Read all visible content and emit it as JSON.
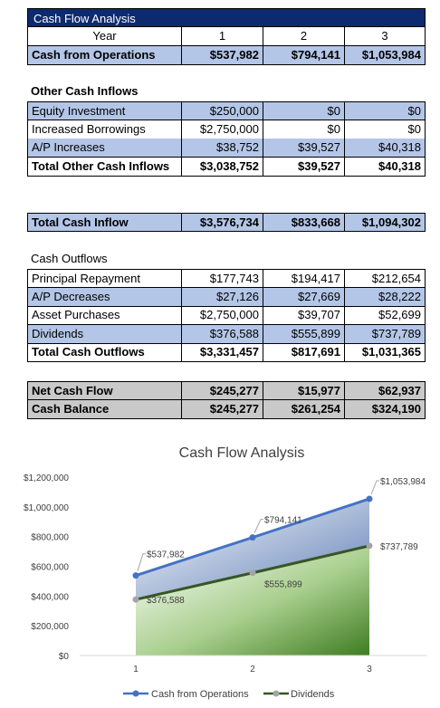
{
  "sheet_title": "Cash Flow Analysis",
  "header": {
    "label": "Year",
    "years": [
      "1",
      "2",
      "3"
    ]
  },
  "operations": {
    "label": "Cash from Operations",
    "values": [
      "$537,982",
      "$794,141",
      "$1,053,984"
    ]
  },
  "other_inflows": {
    "heading": "Other Cash Inflows",
    "rows": [
      {
        "label": "Equity Investment",
        "values": [
          "$250,000",
          "$0",
          "$0"
        ]
      },
      {
        "label": "Increased Borrowings",
        "values": [
          "$2,750,000",
          "$0",
          "$0"
        ]
      },
      {
        "label": "A/P Increases",
        "values": [
          "$38,752",
          "$39,527",
          "$40,318"
        ]
      }
    ],
    "total": {
      "label": "Total Other Cash Inflows",
      "values": [
        "$3,038,752",
        "$39,527",
        "$40,318"
      ]
    }
  },
  "total_inflow": {
    "label": "Total Cash Inflow",
    "values": [
      "$3,576,734",
      "$833,668",
      "$1,094,302"
    ]
  },
  "outflows": {
    "heading": "Cash Outflows",
    "rows": [
      {
        "label": "Principal Repayment",
        "values": [
          "$177,743",
          "$194,417",
          "$212,654"
        ]
      },
      {
        "label": "A/P Decreases",
        "values": [
          "$27,126",
          "$27,669",
          "$28,222"
        ]
      },
      {
        "label": "Asset Purchases",
        "values": [
          "$2,750,000",
          "$39,707",
          "$52,699"
        ]
      },
      {
        "label": "Dividends",
        "values": [
          "$376,588",
          "$555,899",
          "$737,789"
        ]
      }
    ],
    "total": {
      "label": "Total Cash Outflows",
      "values": [
        "$3,331,457",
        "$817,691",
        "$1,031,365"
      ]
    }
  },
  "net_cash_flow": {
    "label": "Net Cash Flow",
    "values": [
      "$245,277",
      "$15,977",
      "$62,937"
    ]
  },
  "cash_balance": {
    "label": "Cash Balance",
    "values": [
      "$245,277",
      "$261,254",
      "$324,190"
    ]
  },
  "colors": {
    "title_bar": "#0e2a6e",
    "row_blue": "#b4c6e7",
    "row_gray": "#c9c9c9",
    "series_ops": "#4472c4",
    "series_div": "#375623",
    "marker_div": "#a5a5a5"
  },
  "chart_data": {
    "type": "area",
    "title": "Cash Flow Analysis",
    "categories": [
      "1",
      "2",
      "3"
    ],
    "ylim": [
      0,
      1200000
    ],
    "y_ticks": [
      0,
      200000,
      400000,
      600000,
      800000,
      1000000,
      1200000
    ],
    "y_tick_labels": [
      "$0",
      "$200,000",
      "$400,000",
      "$600,000",
      "$800,000",
      "$1,000,000",
      "$1,200,000"
    ],
    "series": [
      {
        "name": "Cash from Operations",
        "values": [
          537982,
          794141,
          1053984
        ],
        "labels": [
          "$537,982",
          "$794,141",
          "$1,053,984"
        ]
      },
      {
        "name": "Dividends",
        "values": [
          376588,
          555899,
          737789
        ],
        "labels": [
          "$376,588",
          "$555,899",
          "$737,789"
        ]
      }
    ],
    "legend": "bottom",
    "grid": false
  }
}
